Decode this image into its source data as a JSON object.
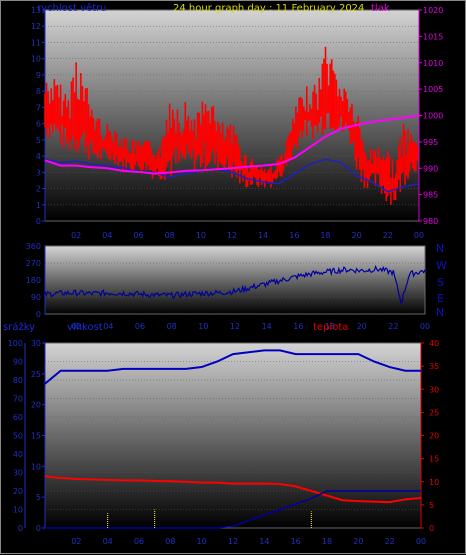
{
  "header": {
    "wind_label": "rychlost větru",
    "title": "24 hour graph day : 11 February 2024",
    "pressure_label": "tlak"
  },
  "direction_labels": [
    "N",
    "W",
    "S",
    "E",
    "N"
  ],
  "lower_header": {
    "rain_label": "srážky",
    "humidity_label": "vlhkost",
    "temp_label": "teplota"
  },
  "colors": {
    "wind": "#ff0000",
    "wind_avg": "#2020c0",
    "pressure": "#ff00ff",
    "direction": "#0000a0",
    "humidity": "#0000c0",
    "temperature": "#ff0000",
    "rain_rate": "#ffff00",
    "rain_total": "#0000a0",
    "axis_left": "#2030c0",
    "axis_right_pressure": "#e000e0",
    "axis_right_temp": "#e00000"
  },
  "chart_data": [
    {
      "type": "line",
      "title": "24 hour graph day : 11 February 2024",
      "xlabel": "",
      "x_ticks": [
        "02",
        "04",
        "06",
        "08",
        "10",
        "12",
        "14",
        "16",
        "18",
        "20",
        "22",
        "00"
      ],
      "x_range_hours": [
        0,
        24
      ],
      "ylabel_left": "rychlost větru",
      "ylim_left": [
        0,
        13
      ],
      "y_ticks_left": [
        "0",
        "1",
        "2",
        "3",
        "4",
        "5",
        "6",
        "7",
        "8",
        "9",
        "10",
        "11",
        "12",
        "13"
      ],
      "ylabel_right": "tlak",
      "ylim_right": [
        980,
        1020
      ],
      "y_ticks_right": [
        "980",
        "985",
        "990",
        "995",
        "1000",
        "1005",
        "1010",
        "1015",
        "1020"
      ],
      "series": [
        {
          "axis": "left",
          "style": "gust bars",
          "x": [
            0,
            0.5,
            1,
            1.5,
            2,
            2.5,
            3,
            3.5,
            4,
            4.5,
            5,
            5.5,
            6,
            6.5,
            7,
            7.5,
            8,
            8.5,
            9,
            9.5,
            10,
            10.5,
            11,
            11.5,
            12,
            12.5,
            13,
            13.5,
            14,
            14.5,
            15,
            15.5,
            16,
            16.5,
            17,
            17.5,
            18,
            18.5,
            19,
            19.5,
            20,
            20.5,
            21,
            21.5,
            22,
            22.5,
            23,
            23.5,
            24
          ],
          "low": [
            5,
            5,
            4.5,
            4,
            4,
            4,
            3.5,
            3.5,
            3.5,
            3.5,
            3,
            3,
            3,
            3,
            2.5,
            2.5,
            2.5,
            2.5,
            3,
            3,
            3,
            3,
            3,
            3,
            2.5,
            2,
            2,
            2,
            2,
            2,
            2.5,
            3,
            4,
            5,
            5,
            5,
            5.5,
            5.5,
            5,
            5,
            3,
            2,
            2,
            1.5,
            1,
            1,
            2,
            3,
            3
          ],
          "high": [
            9,
            9,
            8.5,
            8,
            11,
            9,
            7.5,
            6.5,
            6,
            6,
            5.5,
            5,
            5,
            5,
            5,
            5,
            8.5,
            8,
            7.5,
            7,
            7,
            9,
            6.5,
            6,
            6,
            5.5,
            4,
            4,
            3.5,
            3.5,
            4,
            5,
            7,
            8,
            8.5,
            8.5,
            11.5,
            10,
            9,
            8,
            7,
            5,
            4.5,
            5.5,
            4.5,
            4,
            6,
            5.5,
            5.5
          ]
        },
        {
          "name": "",
          "axis": "left",
          "x": [
            0,
            1,
            2,
            3,
            4,
            5,
            6,
            7,
            8,
            9,
            10,
            11,
            12,
            13,
            14,
            15,
            16,
            17,
            18,
            19,
            20,
            21,
            22,
            23,
            24
          ],
          "values": [
            3.8,
            3.6,
            3.7,
            3.5,
            3.4,
            3.3,
            3,
            3,
            2.7,
            2.9,
            3.1,
            3.2,
            3,
            2.6,
            2.4,
            2.3,
            2.9,
            3.5,
            3.8,
            3.6,
            2.8,
            2.4,
            1.8,
            2.1,
            2.3
          ]
        },
        {
          "name": "tlak",
          "axis": "right",
          "x": [
            0,
            1,
            2,
            3,
            4,
            5,
            6,
            7,
            8,
            9,
            10,
            11,
            12,
            13,
            14,
            15,
            16,
            17,
            18,
            19,
            20,
            21,
            22,
            23,
            24
          ],
          "values": [
            991.5,
            990.5,
            990.5,
            990.2,
            990,
            989.5,
            989.3,
            989,
            989.2,
            989.5,
            989.6,
            989.8,
            990,
            990.3,
            990.5,
            990.8,
            992,
            994,
            996,
            997.5,
            998.2,
            998.8,
            999.2,
            999.6,
            1000
          ]
        }
      ]
    },
    {
      "type": "line",
      "title": "",
      "x_ticks": [
        "02",
        "04",
        "06",
        "08",
        "10",
        "12",
        "14",
        "16",
        "18",
        "20",
        "22",
        "00"
      ],
      "x_range_hours": [
        0,
        24
      ],
      "ylim": [
        0,
        360
      ],
      "y_ticks": [
        "0",
        "90",
        "180",
        "270",
        "360"
      ],
      "series": [
        {
          "name": "",
          "x": [
            0,
            1,
            2,
            3,
            4,
            5,
            6,
            7,
            8,
            9,
            10,
            11,
            12,
            13,
            14,
            15,
            16,
            17,
            18,
            19,
            20,
            21,
            22,
            22.5,
            23,
            24
          ],
          "values": [
            105,
            110,
            112,
            108,
            112,
            110,
            105,
            100,
            98,
            105,
            110,
            112,
            120,
            140,
            160,
            180,
            200,
            215,
            225,
            235,
            230,
            238,
            220,
            60,
            210,
            230
          ]
        }
      ]
    },
    {
      "type": "line",
      "title": "",
      "x_ticks": [
        "02",
        "04",
        "06",
        "08",
        "10",
        "12",
        "14",
        "16",
        "18",
        "20",
        "22",
        "00"
      ],
      "x_range_hours": [
        0,
        24
      ],
      "ylabel_outer": "srážky",
      "ylim_outer": [
        0,
        100
      ],
      "y_ticks_outer": [
        "0",
        "10",
        "20",
        "30",
        "40",
        "50",
        "60",
        "70",
        "80",
        "90",
        "100"
      ],
      "ylabel_left": "vlhkost",
      "ylim_left": [
        0,
        30
      ],
      "y_ticks_left": [
        "0",
        "5",
        "10",
        "15",
        "20",
        "25",
        "30"
      ],
      "ylabel_right": "teplota",
      "ylim_right": [
        0,
        40
      ],
      "y_ticks_right": [
        "0",
        "5",
        "10",
        "15",
        "20",
        "25",
        "30",
        "35",
        "40"
      ],
      "series": [
        {
          "name": "vlhkost",
          "axis": "outer",
          "x": [
            0,
            1,
            2,
            3,
            4,
            5,
            6,
            7,
            8,
            9,
            10,
            11,
            12,
            13,
            14,
            15,
            16,
            17,
            18,
            19,
            20,
            21,
            22,
            23,
            24
          ],
          "values": [
            78,
            85,
            85,
            85,
            85,
            86,
            86,
            86,
            86,
            86,
            87,
            90,
            94,
            95,
            96,
            96,
            94,
            94,
            94,
            94,
            94,
            90,
            87,
            85,
            85
          ]
        },
        {
          "name": "teplota",
          "axis": "right",
          "x": [
            0,
            1,
            2,
            3,
            4,
            5,
            6,
            7,
            8,
            9,
            10,
            11,
            12,
            13,
            14,
            15,
            16,
            17,
            18,
            19,
            20,
            21,
            22,
            23,
            24
          ],
          "values": [
            11.2,
            10.8,
            10.6,
            10.5,
            10.4,
            10.3,
            10.3,
            10.2,
            10.1,
            10,
            9.8,
            9.8,
            9.6,
            9.6,
            9.6,
            9.5,
            9,
            8,
            7,
            6,
            5.8,
            5.7,
            5.6,
            6.2,
            6.5
          ],
          "note": ""
        },
        {
          "name": "",
          "axis": "outer",
          "x": [
            0,
            1,
            2,
            3,
            4,
            5,
            6,
            7,
            8,
            9,
            10,
            11,
            12,
            13,
            14,
            15,
            16,
            17,
            18,
            19,
            20,
            21,
            22,
            23,
            24
          ],
          "values": [
            0,
            0,
            0,
            0,
            0,
            0,
            0,
            0,
            0,
            0,
            0,
            0,
            1,
            4,
            7,
            10,
            13,
            16,
            20,
            20,
            20,
            20,
            20,
            20,
            20
          ]
        },
        {
          "name": "",
          "axis": "outer",
          "style": "yellow bars",
          "x": [
            4.0,
            7.0,
            17.0
          ],
          "values": [
            8,
            10,
            9
          ]
        }
      ]
    }
  ]
}
